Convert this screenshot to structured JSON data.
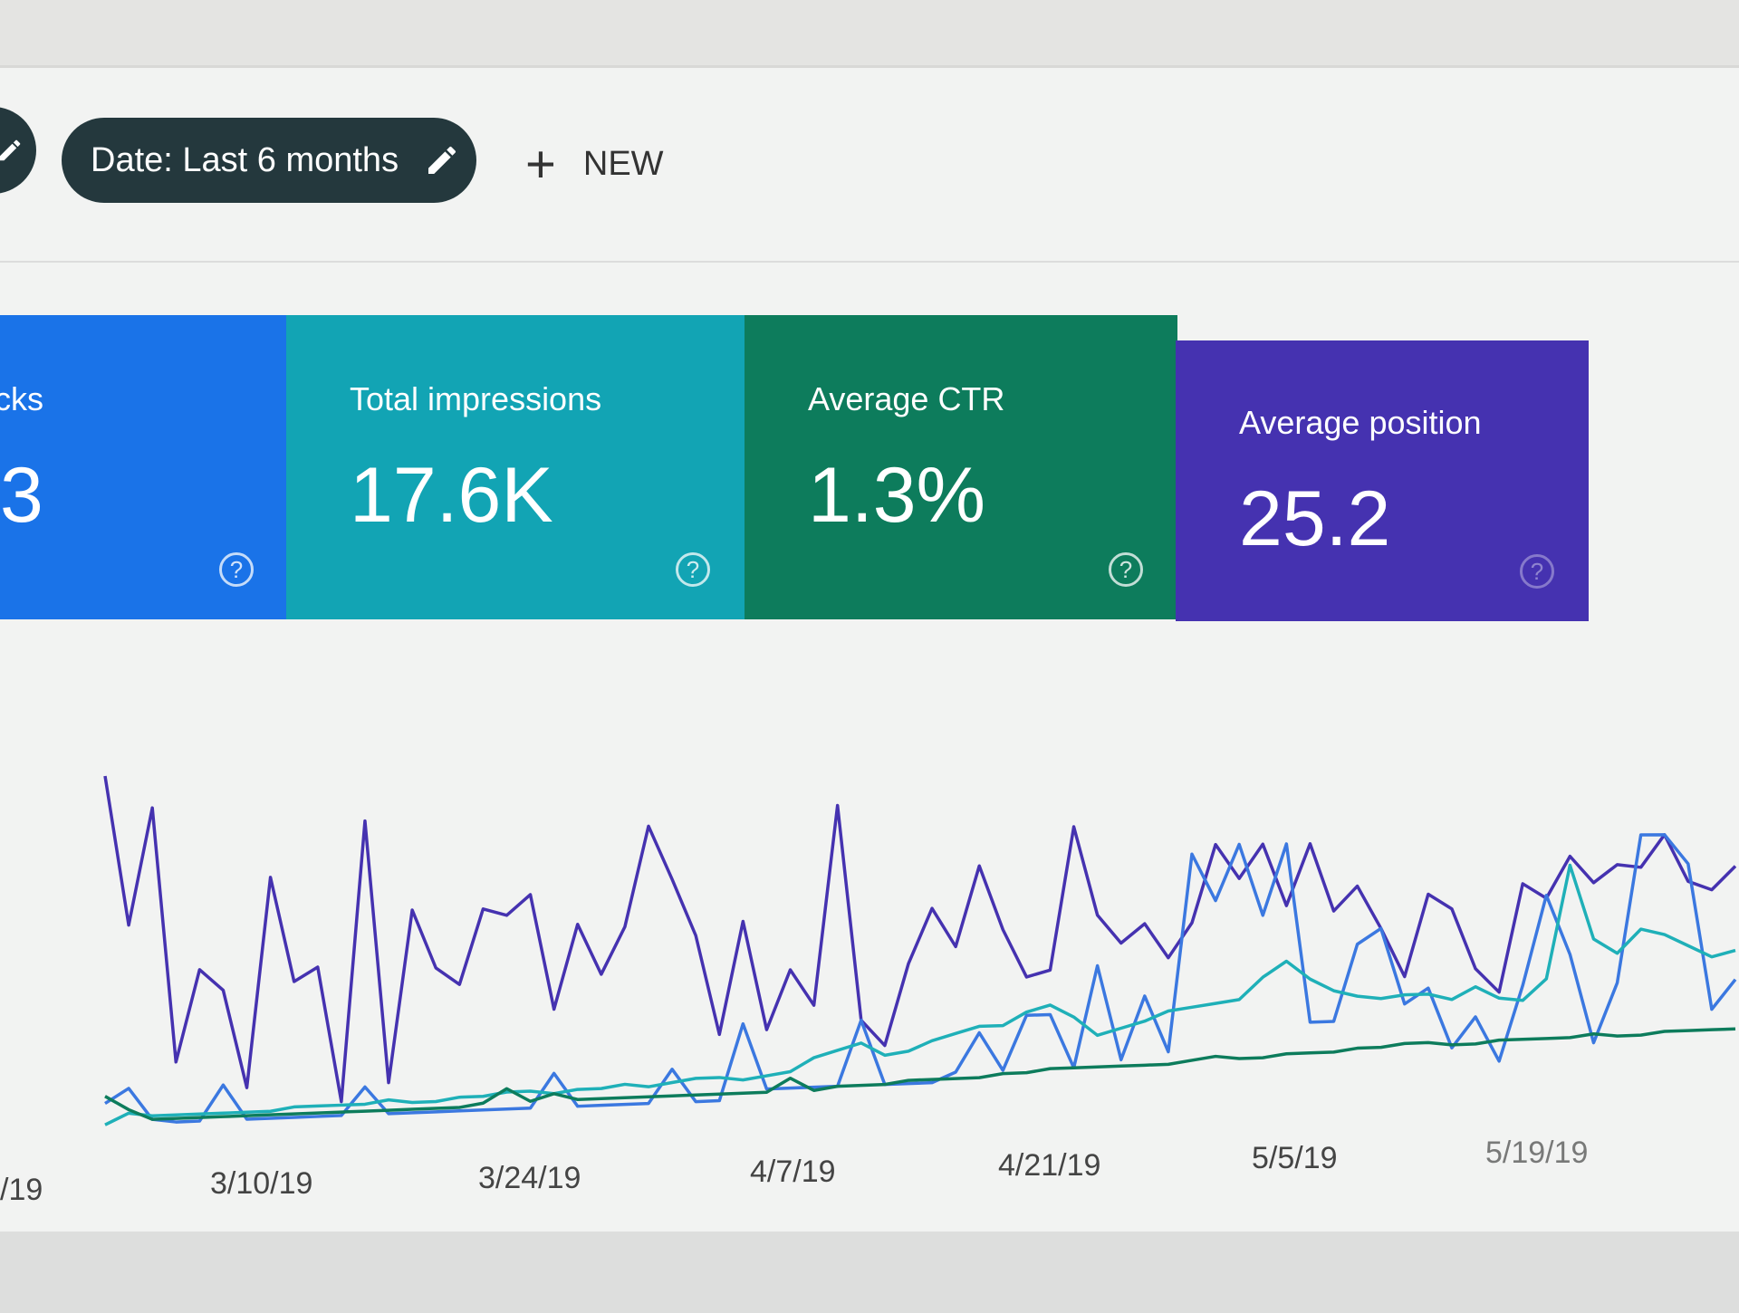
{
  "filters": {
    "date_chip": "Date: Last 6 months",
    "new_label": "NEW"
  },
  "cards": [
    {
      "label": "cks",
      "value": "3",
      "color": "#1a73e8"
    },
    {
      "label": "Total impressions",
      "value": "17.6K",
      "color": "#12a4b4"
    },
    {
      "label": "Average CTR",
      "value": "1.3%",
      "color": "#0d7c5c"
    },
    {
      "label": "Average position",
      "value": "25.2",
      "color": "#4532b0"
    }
  ],
  "help_glyph": "?",
  "chart_data": {
    "type": "line",
    "xticks": [
      "/19",
      "3/10/19",
      "3/24/19",
      "4/7/19",
      "4/21/19",
      "5/5/19",
      "5/19/19"
    ],
    "grid": false,
    "series": [
      {
        "color": "#4532b0",
        "values": [
          100,
          58,
          91,
          19,
          45,
          39,
          11,
          71,
          41,
          45,
          6,
          87,
          11,
          61,
          44,
          39,
          61,
          59,
          65,
          31,
          56,
          41,
          55,
          85,
          69,
          52,
          22,
          56,
          23,
          41,
          30,
          91,
          25,
          17,
          42,
          59,
          47,
          72,
          52,
          37,
          39,
          84,
          56,
          47,
          53,
          42,
          53,
          78,
          67,
          78,
          58,
          78,
          56,
          64,
          50,
          34,
          61,
          56,
          36,
          28,
          64,
          59,
          73,
          64,
          70,
          69,
          80,
          64,
          61,
          69
        ]
      },
      {
        "color": "#3b78e0",
        "values": [
          8,
          12,
          3,
          2,
          2,
          12,
          2,
          2,
          2,
          2,
          2,
          10,
          2,
          2,
          2,
          2,
          2,
          2,
          2,
          12,
          2,
          2,
          2,
          2,
          12,
          2,
          2,
          25,
          5,
          5,
          5,
          5,
          25,
          5,
          5,
          5,
          8,
          20,
          8,
          25,
          25,
          8,
          40,
          10,
          30,
          12,
          75,
          60,
          78,
          55,
          78,
          20,
          20,
          45,
          50,
          25,
          30,
          10,
          20,
          5,
          30,
          60,
          40,
          10,
          30,
          80,
          80,
          70,
          20,
          30
        ]
      },
      {
        "color": "#1fb0b8",
        "values": [
          2,
          5,
          4,
          4,
          4,
          4,
          4,
          4,
          5,
          5,
          5,
          5,
          6,
          5,
          5,
          6,
          6,
          7,
          7,
          6,
          7,
          7,
          8,
          7,
          8,
          9,
          9,
          8,
          9,
          10,
          14,
          16,
          18,
          14,
          15,
          18,
          20,
          22,
          22,
          26,
          28,
          24,
          18,
          20,
          22,
          25,
          26,
          27,
          28,
          35,
          40,
          34,
          30,
          28,
          27,
          28,
          28,
          26,
          30,
          26,
          25,
          32,
          70,
          45,
          40,
          48,
          46,
          42,
          38,
          40
        ]
      },
      {
        "color": "#0d7c5c",
        "values": [
          10,
          6,
          3,
          3,
          3,
          3,
          3,
          3,
          3,
          3,
          3,
          3,
          3,
          3,
          3,
          3,
          4,
          8,
          4,
          6,
          4,
          4,
          4,
          4,
          4,
          4,
          4,
          4,
          4,
          8,
          4,
          5,
          5,
          5,
          6,
          6,
          6,
          6,
          7,
          7,
          8,
          8,
          8,
          8,
          8,
          8,
          9,
          10,
          9,
          9,
          10,
          10,
          10,
          11,
          11,
          12,
          12,
          11,
          11,
          12,
          12,
          12,
          12,
          13,
          12,
          12,
          13,
          13,
          13,
          13
        ]
      }
    ]
  }
}
